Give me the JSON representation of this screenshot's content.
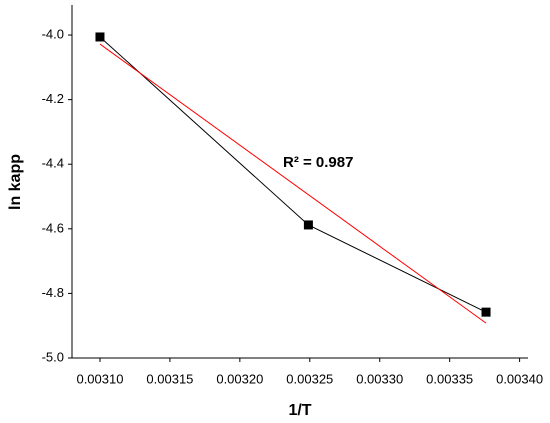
{
  "chart_data": {
    "type": "line",
    "xlabel": "1/T",
    "ylabel": "ln kapp",
    "annotation": "R² = 0.987",
    "series": [
      {
        "color": "#000000",
        "x": [
          0.0031,
          0.003249,
          0.003376
        ],
        "values": [
          -4.006,
          -4.588,
          -4.858
        ],
        "markers": true
      },
      {
        "color": "#ff0000",
        "x": [
          0.0031,
          0.003376
        ],
        "values": [
          -4.028,
          -4.892
        ],
        "markers": false
      }
    ],
    "xlim": [
      0.00308,
      0.003406
    ],
    "ylim": [
      -5.0,
      -3.907
    ],
    "xticks": [
      {
        "value": 0.0031,
        "label": "0.00310"
      },
      {
        "value": 0.00315,
        "label": "0.00315"
      },
      {
        "value": 0.0032,
        "label": "0.00320"
      },
      {
        "value": 0.00325,
        "label": "0.00325"
      },
      {
        "value": 0.0033,
        "label": "0.00330"
      },
      {
        "value": 0.00335,
        "label": "0.00335"
      },
      {
        "value": 0.0034,
        "label": "0.00340"
      }
    ],
    "yticks": [
      {
        "value": -5.0,
        "label": "-5.0"
      },
      {
        "value": -4.8,
        "label": "-4.8"
      },
      {
        "value": -4.6,
        "label": "-4.6"
      },
      {
        "value": -4.4,
        "label": "-4.4"
      },
      {
        "value": -4.2,
        "label": "-4.2"
      },
      {
        "value": -4.0,
        "label": "-4.0"
      }
    ],
    "grid": false
  }
}
